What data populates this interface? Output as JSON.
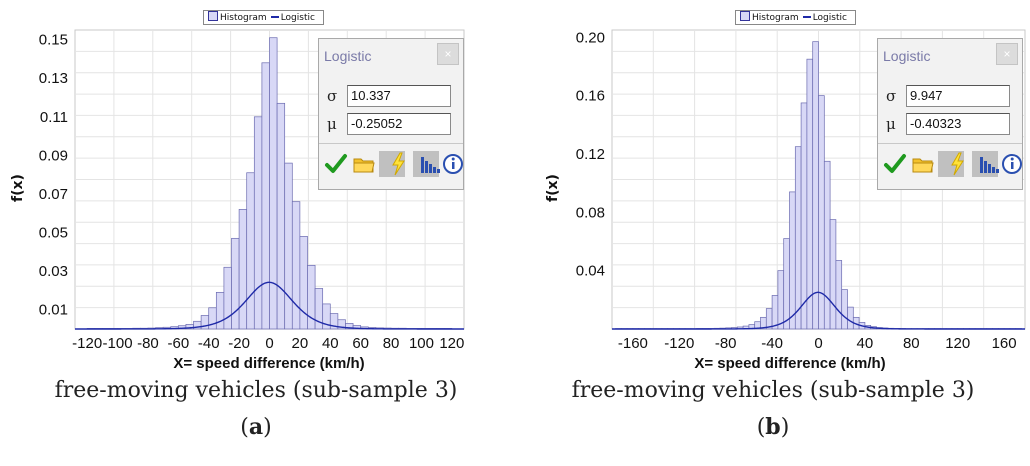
{
  "legend": {
    "histogram": "Histogram",
    "fit": "Logistic"
  },
  "colors": {
    "bar_fill": "#d8d8f6",
    "bar_stroke": "#6a6ab0",
    "curve": "#1f2aa8",
    "grid": "#e4e4e4"
  },
  "dialog_icons": [
    "check-icon",
    "folder-icon",
    "lightning-icon",
    "histogram-icon",
    "info-icon"
  ],
  "panels": [
    {
      "dialog": {
        "title": "Logistic",
        "close": "×",
        "sigma_symbol": "σ",
        "sigma_value": "10.337",
        "mu_symbol": "μ",
        "mu_value": "-0.25052"
      },
      "caption": "free-moving vehicles (sub-sample 3)",
      "label": "a"
    },
    {
      "dialog": {
        "title": "Logistic",
        "close": "×",
        "sigma_symbol": "σ",
        "sigma_value": "9.947",
        "mu_symbol": "μ",
        "mu_value": "-0.40323"
      },
      "caption": "free-moving vehicles (sub-sample 3)",
      "label": "b"
    }
  ],
  "chart_data": [
    {
      "type": "bar",
      "title": "",
      "xlabel": "X= speed difference (km/h)",
      "ylabel": "f(x)",
      "xlim": [
        -128,
        128
      ],
      "ylim": [
        0,
        0.155
      ],
      "xticks": [
        -120,
        -100,
        -80,
        -60,
        -40,
        -20,
        0,
        20,
        40,
        60,
        80,
        100,
        120
      ],
      "xtick_labels": [
        "-120",
        "-100",
        "-80",
        "-60",
        "-40",
        "-20",
        "0",
        "20",
        "40",
        "60",
        "80",
        "100",
        "120"
      ],
      "yticks": [
        0.01,
        0.03,
        0.05,
        0.07,
        0.09,
        0.11,
        0.13,
        0.15
      ],
      "ytick_labels": [
        "0.01",
        "0.03",
        "0.05",
        "0.07",
        "0.09",
        "0.11",
        "0.13",
        "0.15"
      ],
      "grid": true,
      "legend": "top-center",
      "bin_width": 5,
      "bins": [
        -120,
        -115,
        -110,
        -105,
        -100,
        -95,
        -90,
        -85,
        -80,
        -75,
        -70,
        -65,
        -60,
        -55,
        -50,
        -45,
        -40,
        -35,
        -30,
        -25,
        -20,
        -15,
        -10,
        -5,
        0,
        5,
        10,
        15,
        20,
        25,
        30,
        35,
        40,
        45,
        50,
        55,
        60,
        65,
        70,
        75,
        80,
        85,
        90,
        95,
        100,
        105,
        110,
        115
      ],
      "values": [
        0.0003,
        0.0003,
        0.0003,
        0.0003,
        0.0003,
        0.0003,
        0.0004,
        0.0004,
        0.0005,
        0.0007,
        0.0009,
        0.0012,
        0.0017,
        0.0024,
        0.004,
        0.007,
        0.011,
        0.019,
        0.032,
        0.047,
        0.062,
        0.081,
        0.11,
        0.138,
        0.151,
        0.117,
        0.086,
        0.066,
        0.048,
        0.033,
        0.021,
        0.013,
        0.008,
        0.0048,
        0.0029,
        0.0018,
        0.0011,
        0.0008,
        0.0006,
        0.0005,
        0.0004,
        0.0004,
        0.0003,
        0.0003,
        0.0003,
        0.0003,
        0.0003,
        0.0003
      ],
      "series": [
        {
          "name": "Histogram"
        },
        {
          "name": "Logistic",
          "sigma": 10.337,
          "mu": -0.25052
        }
      ]
    },
    {
      "type": "bar",
      "title": "",
      "xlabel": "X= speed difference (km/h)",
      "ylabel": "f(x)",
      "xlim": [
        -178,
        178
      ],
      "ylim": [
        0,
        0.205
      ],
      "xticks": [
        -160,
        -120,
        -80,
        -40,
        0,
        40,
        80,
        120,
        160
      ],
      "xtick_labels": [
        "-160",
        "-120",
        "-80",
        "-40",
        "0",
        "40",
        "80",
        "120",
        "160"
      ],
      "yticks": [
        0.04,
        0.08,
        0.12,
        0.16,
        0.2
      ],
      "ytick_labels": [
        "0.04",
        "0.08",
        "0.12",
        "0.16",
        "0.20"
      ],
      "grid": true,
      "legend": "top-center",
      "bin_width": 5,
      "bins": [
        -175,
        -170,
        -165,
        -160,
        -155,
        -150,
        -145,
        -140,
        -135,
        -130,
        -125,
        -120,
        -115,
        -110,
        -105,
        -100,
        -95,
        -90,
        -85,
        -80,
        -75,
        -70,
        -65,
        -60,
        -55,
        -50,
        -45,
        -40,
        -35,
        -30,
        -25,
        -20,
        -15,
        -10,
        -5,
        0,
        5,
        10,
        15,
        20,
        25,
        30,
        35,
        40,
        45,
        50,
        55,
        60,
        65,
        70,
        75,
        80,
        85,
        90,
        95,
        100,
        105,
        110,
        115,
        120,
        125,
        130,
        135,
        140,
        145,
        150,
        155,
        160,
        165,
        170
      ],
      "values": [
        0.0003,
        0.0003,
        0.0003,
        0.0003,
        0.0003,
        0.0003,
        0.0003,
        0.0003,
        0.0003,
        0.0003,
        0.0003,
        0.0003,
        0.0003,
        0.0003,
        0.0004,
        0.0004,
        0.0004,
        0.0005,
        0.0006,
        0.0008,
        0.001,
        0.0014,
        0.002,
        0.003,
        0.005,
        0.008,
        0.014,
        0.023,
        0.04,
        0.062,
        0.094,
        0.125,
        0.155,
        0.185,
        0.197,
        0.16,
        0.115,
        0.075,
        0.047,
        0.027,
        0.015,
        0.008,
        0.0045,
        0.0025,
        0.0016,
        0.001,
        0.0007,
        0.0005,
        0.0004,
        0.0004,
        0.0003,
        0.0003,
        0.0003,
        0.0003,
        0.0003,
        0.0003,
        0.0003,
        0.0003,
        0.0003,
        0.0003,
        0.0003,
        0.0003,
        0.0003,
        0.0003,
        0.0003,
        0.0003,
        0.0003,
        0.0003,
        0.0003,
        0.0003
      ],
      "series": [
        {
          "name": "Histogram"
        },
        {
          "name": "Logistic",
          "sigma": 9.947,
          "mu": -0.40323
        }
      ]
    }
  ]
}
